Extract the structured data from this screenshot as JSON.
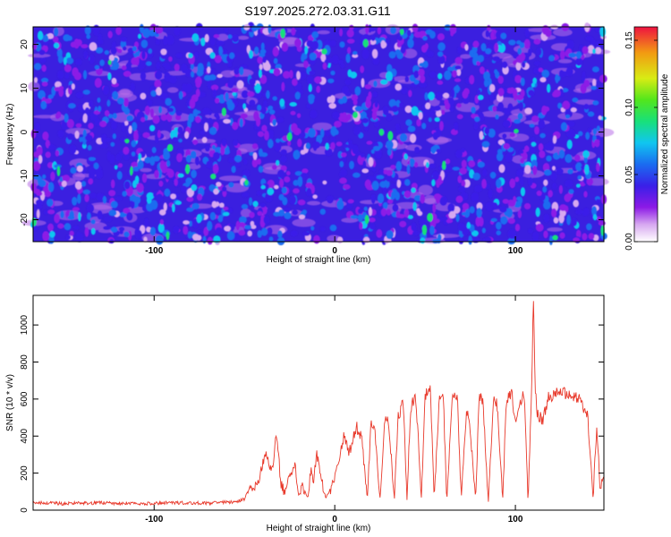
{
  "title": "S197.2025.272.03.31.G11",
  "chart_data": [
    {
      "type": "heatmap",
      "xlabel": "Height of straight line (km)",
      "ylabel": "Frequency (Hz)",
      "xlim": [
        -167,
        149
      ],
      "ylim": [
        -25,
        24
      ],
      "xticks": [
        -100,
        0,
        100
      ],
      "yticks": [
        -20,
        -10,
        0,
        10,
        20
      ],
      "xtick_labels": [
        "-100",
        "0",
        "100"
      ],
      "ytick_labels": [
        "-20",
        "-10",
        "0",
        "10",
        "20"
      ],
      "colorbar": {
        "label": "Normalized spectral amplitude",
        "range": [
          0,
          0.16
        ],
        "ticks": [
          0,
          0.05,
          0.1,
          0.15
        ],
        "tick_labels": [
          "0.00",
          "0.05",
          "0.10",
          "0.15"
        ]
      },
      "description_values": {
        "typical_amplitude": 0.04,
        "peak_amplitude": 0.1
      }
    },
    {
      "type": "line",
      "xlabel": "Height of straight line (km)",
      "ylabel": "SNR (10 * v/v)",
      "xlim": [
        -167,
        149
      ],
      "ylim": [
        0,
        1160
      ],
      "xticks": [
        -100,
        0,
        100
      ],
      "yticks": [
        0,
        200,
        400,
        600,
        800,
        1000
      ],
      "xtick_labels": [
        "-100",
        "0",
        "100"
      ],
      "ytick_labels": [
        "0",
        "200",
        "400",
        "600",
        "800",
        "1000"
      ],
      "color": "#e8392b",
      "series": [
        {
          "name": "SNR",
          "x": [
            -167,
            -150,
            -130,
            -110,
            -90,
            -70,
            -55,
            -50,
            -48,
            -45,
            -42,
            -40,
            -38,
            -35,
            -32,
            -30,
            -28,
            -25,
            -22,
            -20,
            -18,
            -15,
            -13,
            -12,
            -10,
            -8,
            -5,
            -2,
            0,
            2,
            5,
            8,
            10,
            12,
            15,
            18,
            20,
            22,
            25,
            28,
            30,
            33,
            35,
            38,
            40,
            42,
            45,
            48,
            50,
            53,
            55,
            58,
            60,
            62,
            65,
            68,
            70,
            73,
            75,
            78,
            80,
            82,
            85,
            88,
            90,
            93,
            95,
            98,
            100,
            102,
            105,
            107,
            109,
            110,
            111,
            112,
            115,
            118,
            120,
            125,
            130,
            135,
            140,
            143,
            145,
            147,
            149
          ],
          "y": [
            40,
            35,
            40,
            35,
            40,
            38,
            45,
            60,
            100,
            120,
            150,
            250,
            300,
            200,
            420,
            150,
            100,
            180,
            250,
            80,
            130,
            60,
            240,
            150,
            300,
            200,
            60,
            120,
            180,
            250,
            400,
            300,
            380,
            450,
            380,
            60,
            450,
            480,
            60,
            520,
            450,
            60,
            500,
            580,
            60,
            560,
            600,
            60,
            620,
            640,
            60,
            620,
            650,
            40,
            620,
            600,
            60,
            560,
            440,
            60,
            620,
            600,
            40,
            640,
            560,
            60,
            600,
            620,
            480,
            560,
            640,
            40,
            650,
            1160,
            660,
            520,
            480,
            600,
            620,
            640,
            630,
            600,
            500,
            60,
            460,
            100,
            210
          ]
        }
      ]
    }
  ]
}
